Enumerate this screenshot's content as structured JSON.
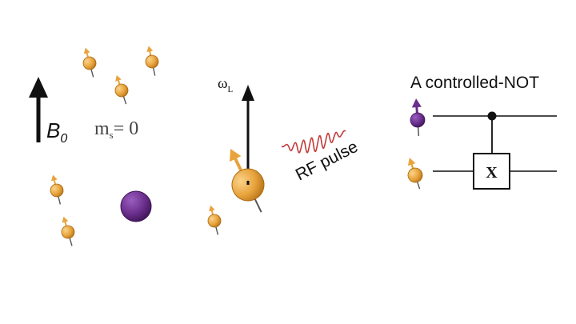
{
  "field": {
    "label": "B",
    "subscript": "0"
  },
  "electron_state": {
    "label": "m",
    "subscript": "s",
    "value": "= 0"
  },
  "larmor": {
    "label": "ω",
    "subscript": "L"
  },
  "rf_pulse": {
    "label": "RF pulse"
  },
  "circuit": {
    "title": "A controlled-NOT",
    "gate_label": "X"
  },
  "colors": {
    "nuclear_spin": "#e8a33c",
    "electron_spin": "#6a2e8c",
    "rf_wave": "#c23b3b",
    "ink": "#111111"
  }
}
